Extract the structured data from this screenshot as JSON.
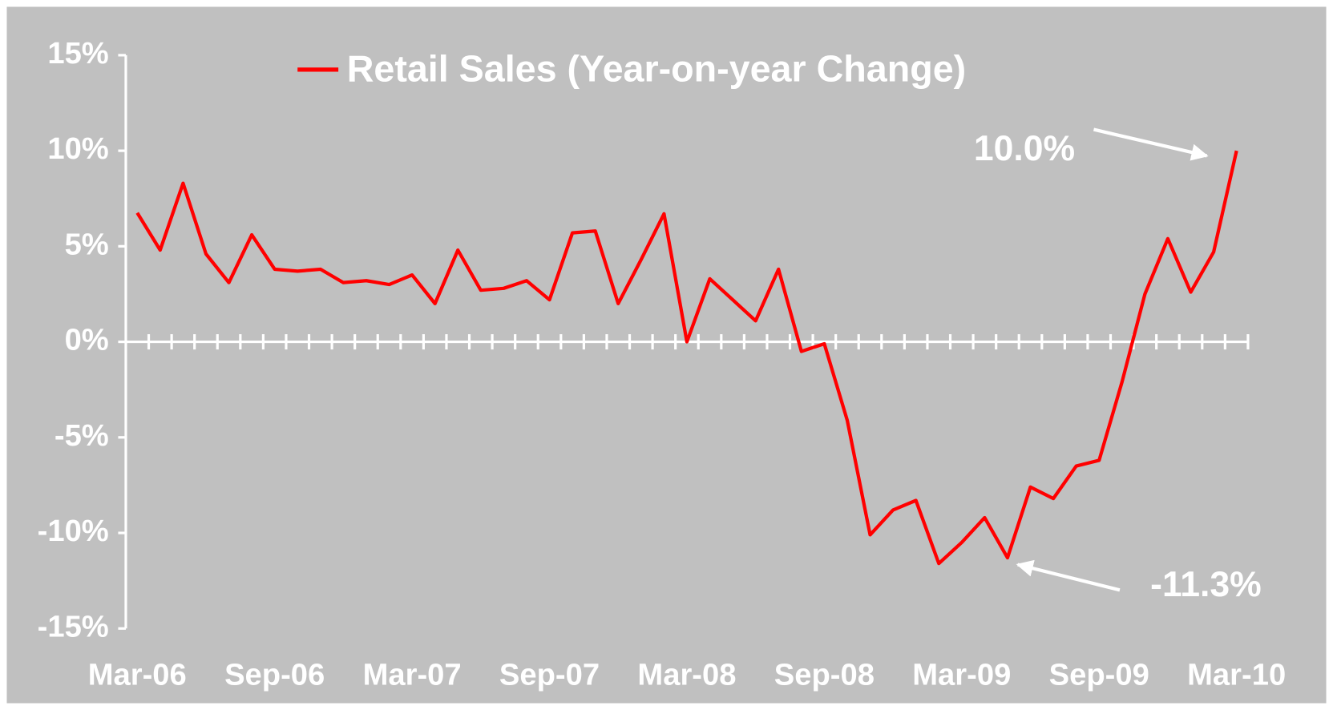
{
  "chart_data": {
    "type": "line",
    "legend": "top",
    "categories": [
      "Mar-06",
      null,
      null,
      null,
      null,
      null,
      "Sep-06",
      null,
      null,
      null,
      null,
      null,
      "Mar-07",
      null,
      null,
      null,
      null,
      null,
      "Sep-07",
      null,
      null,
      null,
      null,
      null,
      "Mar-08",
      null,
      null,
      null,
      null,
      null,
      "Sep-08",
      null,
      null,
      null,
      null,
      null,
      "Mar-09",
      null,
      null,
      null,
      null,
      null,
      "Sep-09",
      null,
      null,
      null,
      null,
      null,
      "Mar-10"
    ],
    "series": [
      {
        "name": "Retail Sales (Year-on-year Change)",
        "color": "#ff0000",
        "values": [
          6.75,
          4.8,
          8.3,
          4.6,
          3.1,
          5.6,
          3.8,
          3.7,
          3.8,
          3.1,
          3.2,
          3.0,
          3.5,
          2.0,
          4.8,
          2.7,
          2.8,
          3.2,
          2.2,
          5.7,
          5.8,
          2.0,
          4.3,
          6.7,
          0.0,
          3.3,
          2.2,
          1.1,
          3.8,
          -0.5,
          -0.1,
          -4.1,
          -10.1,
          -8.8,
          -8.3,
          -11.6,
          -10.5,
          -9.2,
          -11.3,
          -7.6,
          -8.2,
          -6.5,
          -6.2,
          -2.1,
          2.5,
          5.4,
          2.6,
          4.7,
          10.0
        ]
      }
    ],
    "ylim": [
      -15,
      15
    ],
    "yticks": [
      {
        "value": -15,
        "label": "-15%"
      },
      {
        "value": -10,
        "label": "-10%"
      },
      {
        "value": -5,
        "label": "-5%"
      },
      {
        "value": 0,
        "label": "0%"
      },
      {
        "value": 5,
        "label": "5%"
      },
      {
        "value": 10,
        "label": "10%"
      },
      {
        "value": 15,
        "label": "15%"
      }
    ],
    "annotations": [
      {
        "text": "10.0%",
        "index": 48
      },
      {
        "text": "-11.3%",
        "index": 38
      }
    ]
  }
}
